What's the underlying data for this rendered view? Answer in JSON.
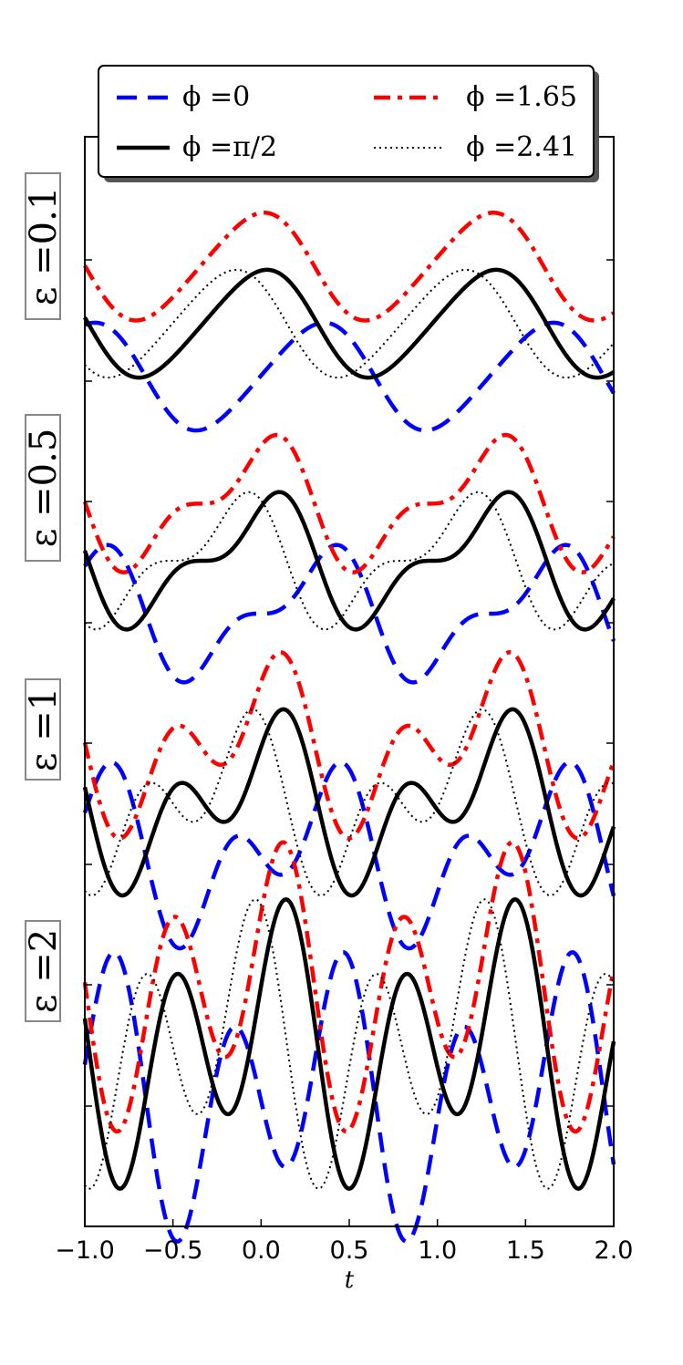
{
  "chart_data": {
    "type": "line",
    "xlabel": "t",
    "xlim": [
      -1.0,
      2.0
    ],
    "xticks": [
      "−1.0",
      "−0.5",
      "0.0",
      "0.5",
      "1.0",
      "1.5",
      "2.0"
    ],
    "y_tick_labels_shown": false,
    "legend": {
      "placement": "top-center",
      "entries": [
        {
          "label": "ϕ =0",
          "series": "phi0"
        },
        {
          "label": "ϕ =1.65",
          "series": "phi165"
        },
        {
          "label": "ϕ =π/2",
          "series": "phipi2"
        },
        {
          "label": "ϕ =2.41",
          "series": "phi241"
        }
      ]
    },
    "series_styles": [
      {
        "id": "phi0",
        "phase": 0,
        "color": "#0000ff",
        "dash": "dashed"
      },
      {
        "id": "phi165",
        "phase": 1.65,
        "color": "#ff0000",
        "dash": "dashdot"
      },
      {
        "id": "phipi2",
        "phase": 1.5708,
        "color": "#000000",
        "dash": "solid"
      },
      {
        "id": "phi241",
        "phase": 2.41,
        "color": "#000000",
        "dash": "dotted"
      }
    ],
    "panels": [
      {
        "label": "ε =0.1",
        "epsilon": 0.1
      },
      {
        "label": "ε =0.5",
        "epsilon": 0.5
      },
      {
        "label": "ε =1",
        "epsilon": 1
      },
      {
        "label": "ε =2",
        "epsilon": 2
      }
    ],
    "grid": false
  }
}
